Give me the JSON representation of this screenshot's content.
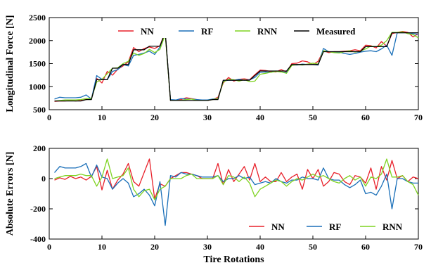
{
  "chart_data": [
    {
      "type": "line",
      "title": "",
      "xlabel": "",
      "ylabel": "Longitudinal Force [N]",
      "xlim": [
        0,
        70
      ],
      "ylim": [
        500,
        2500
      ],
      "xticks": [
        0,
        10,
        20,
        30,
        40,
        50,
        60,
        70
      ],
      "yticks": [
        500,
        1000,
        1500,
        2000,
        2500
      ],
      "grid": false,
      "legend": "top, horizontal",
      "x": [
        1,
        2,
        3,
        4,
        5,
        6,
        7,
        8,
        9,
        10,
        11,
        12,
        13,
        14,
        15,
        16,
        17,
        18,
        19,
        20,
        21,
        22,
        23,
        24,
        25,
        26,
        27,
        28,
        29,
        30,
        31,
        32,
        33,
        34,
        35,
        36,
        37,
        38,
        39,
        40,
        41,
        42,
        43,
        44,
        45,
        46,
        47,
        48,
        49,
        50,
        51,
        52,
        53,
        54,
        55,
        56,
        57,
        58,
        59,
        60,
        61,
        62,
        63,
        64,
        65,
        66,
        67,
        68,
        69,
        70
      ],
      "series": [
        {
          "name": "NN",
          "color": "#e8202a",
          "values": [
            680,
            690,
            690,
            700,
            690,
            700,
            720,
            735,
            1180,
            1080,
            1330,
            1250,
            1380,
            1450,
            1540,
            1850,
            1760,
            1830,
            1860,
            1830,
            1890,
            2190,
            700,
            700,
            720,
            760,
            740,
            720,
            700,
            700,
            720,
            770,
            1080,
            1200,
            1120,
            1160,
            1170,
            1150,
            1260,
            1360,
            1350,
            1330,
            1320,
            1370,
            1320,
            1500,
            1510,
            1560,
            1540,
            1480,
            1550,
            1780,
            1740,
            1760,
            1760,
            1770,
            1780,
            1800,
            1780,
            1900,
            1890,
            1840,
            1980,
            1880,
            2150,
            2180,
            2200,
            2180,
            2080,
            2150
          ]
        },
        {
          "name": "RF",
          "color": "#1a6fb8",
          "values": [
            730,
            770,
            760,
            760,
            760,
            770,
            820,
            730,
            1240,
            1160,
            1150,
            1330,
            1370,
            1480,
            1450,
            1680,
            1700,
            1730,
            1770,
            1700,
            1860,
            2180,
            720,
            710,
            740,
            730,
            730,
            720,
            710,
            710,
            730,
            740,
            1120,
            1140,
            1140,
            1160,
            1140,
            1150,
            1200,
            1310,
            1320,
            1310,
            1340,
            1320,
            1310,
            1470,
            1470,
            1490,
            1480,
            1480,
            1470,
            1830,
            1760,
            1750,
            1750,
            1720,
            1700,
            1720,
            1750,
            1770,
            1780,
            1760,
            1820,
            1900,
            1680,
            2170,
            2170,
            2170,
            2150,
            2140
          ]
        },
        {
          "name": "RNN",
          "color": "#7ed321",
          "values": [
            690,
            700,
            710,
            710,
            710,
            720,
            740,
            740,
            1100,
            1160,
            1280,
            1400,
            1410,
            1500,
            1550,
            1730,
            1680,
            1720,
            1810,
            1740,
            1810,
            2130,
            700,
            700,
            700,
            720,
            730,
            700,
            700,
            700,
            720,
            740,
            1100,
            1160,
            1150,
            1120,
            1150,
            1110,
            1120,
            1270,
            1290,
            1310,
            1330,
            1320,
            1290,
            1460,
            1480,
            1470,
            1490,
            1510,
            1490,
            1780,
            1760,
            1740,
            1730,
            1760,
            1780,
            1750,
            1770,
            1820,
            1880,
            1870,
            1900,
            2000,
            2180,
            2180,
            2190,
            2150,
            2130,
            2060
          ]
        },
        {
          "name": "Measured",
          "color": "#000000",
          "values": [
            690,
            690,
            690,
            690,
            690,
            690,
            720,
            720,
            1150,
            1150,
            1150,
            1400,
            1400,
            1480,
            1480,
            1800,
            1800,
            1800,
            1880,
            1880,
            1880,
            2180,
            700,
            700,
            700,
            700,
            700,
            700,
            700,
            700,
            720,
            720,
            1140,
            1140,
            1140,
            1140,
            1140,
            1140,
            1240,
            1340,
            1340,
            1340,
            1340,
            1340,
            1340,
            1480,
            1480,
            1480,
            1480,
            1480,
            1480,
            1760,
            1760,
            1760,
            1760,
            1760,
            1760,
            1760,
            1760,
            1870,
            1870,
            1870,
            1870,
            1870,
            2170,
            2170,
            2170,
            2170,
            2170,
            2170
          ]
        }
      ]
    },
    {
      "type": "line",
      "title": "",
      "xlabel": "Tire Rotations",
      "ylabel": "Absolute Errors [N]",
      "xlim": [
        0,
        70
      ],
      "ylim": [
        -400,
        200
      ],
      "xticks": [
        0,
        10,
        20,
        30,
        40,
        50,
        60,
        70
      ],
      "yticks": [
        -400,
        -200,
        0,
        200
      ],
      "grid": false,
      "legend": "bottom-right, horizontal",
      "x": [
        1,
        2,
        3,
        4,
        5,
        6,
        7,
        8,
        9,
        10,
        11,
        12,
        13,
        14,
        15,
        16,
        17,
        18,
        19,
        20,
        21,
        22,
        23,
        24,
        25,
        26,
        27,
        28,
        29,
        30,
        31,
        32,
        33,
        34,
        35,
        36,
        37,
        38,
        39,
        40,
        41,
        42,
        43,
        44,
        45,
        46,
        47,
        48,
        49,
        50,
        51,
        52,
        53,
        54,
        55,
        56,
        57,
        58,
        59,
        60,
        61,
        62,
        63,
        64,
        65,
        66,
        67,
        68,
        69,
        70
      ],
      "series": [
        {
          "name": "NN",
          "color": "#e8202a",
          "values": [
            -10,
            5,
            -5,
            15,
            0,
            10,
            -10,
            15,
            80,
            -75,
            55,
            -70,
            -10,
            30,
            100,
            -20,
            -50,
            40,
            130,
            -135,
            -35,
            -50,
            0,
            20,
            40,
            40,
            30,
            20,
            0,
            0,
            0,
            100,
            -40,
            60,
            -20,
            30,
            80,
            -10,
            100,
            -20,
            10,
            -20,
            -20,
            40,
            -20,
            10,
            30,
            -70,
            60,
            0,
            60,
            -50,
            -20,
            40,
            30,
            -20,
            -40,
            20,
            10,
            -30,
            70,
            -70,
            80,
            -10,
            120,
            0,
            20,
            -20,
            10,
            0
          ]
        },
        {
          "name": "RF",
          "color": "#1a6fb8",
          "values": [
            40,
            80,
            70,
            70,
            70,
            80,
            100,
            10,
            90,
            10,
            0,
            -70,
            -30,
            0,
            -30,
            -120,
            -100,
            -70,
            -110,
            -180,
            -20,
            -310,
            20,
            10,
            40,
            30,
            30,
            20,
            10,
            10,
            10,
            20,
            -20,
            0,
            0,
            20,
            0,
            10,
            -40,
            -30,
            -20,
            -30,
            0,
            -20,
            -30,
            -10,
            -10,
            10,
            0,
            0,
            -10,
            70,
            0,
            -10,
            -10,
            -40,
            -60,
            -40,
            -10,
            -100,
            -90,
            -110,
            -50,
            30,
            -200,
            0,
            0,
            -20,
            -30,
            -30
          ]
        },
        {
          "name": "RNN",
          "color": "#7ed321",
          "values": [
            0,
            10,
            20,
            20,
            20,
            30,
            20,
            20,
            -50,
            10,
            130,
            0,
            10,
            20,
            70,
            -70,
            -120,
            -80,
            -70,
            -140,
            -70,
            -50,
            0,
            0,
            0,
            20,
            30,
            0,
            0,
            0,
            0,
            20,
            -40,
            20,
            10,
            -20,
            10,
            -30,
            -120,
            -70,
            -50,
            -30,
            -10,
            -20,
            -50,
            -20,
            0,
            -10,
            10,
            30,
            10,
            20,
            0,
            -20,
            -30,
            0,
            20,
            -10,
            10,
            -50,
            10,
            0,
            30,
            130,
            10,
            10,
            20,
            -20,
            -40,
            -110
          ]
        }
      ]
    }
  ]
}
